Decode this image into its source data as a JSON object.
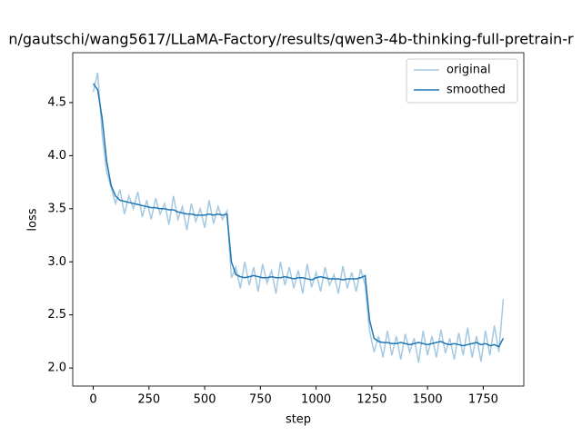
{
  "chart_data": {
    "type": "line",
    "title": "n/gautschi/wang5617/LLaMA-Factory/results/qwen3-4b-thinking-full-pretrain-r",
    "xlabel": "step",
    "ylabel": "loss",
    "x": [
      0,
      20,
      40,
      60,
      80,
      100,
      120,
      140,
      160,
      180,
      200,
      220,
      240,
      260,
      280,
      300,
      320,
      340,
      360,
      380,
      400,
      420,
      440,
      460,
      480,
      500,
      520,
      540,
      560,
      580,
      600,
      620,
      640,
      660,
      680,
      700,
      720,
      740,
      760,
      780,
      800,
      820,
      840,
      860,
      880,
      900,
      920,
      940,
      960,
      980,
      1000,
      1020,
      1040,
      1060,
      1080,
      1100,
      1120,
      1140,
      1160,
      1180,
      1200,
      1220,
      1240,
      1260,
      1280,
      1300,
      1320,
      1340,
      1360,
      1380,
      1400,
      1420,
      1440,
      1460,
      1480,
      1500,
      1520,
      1540,
      1560,
      1580,
      1600,
      1620,
      1640,
      1660,
      1680,
      1700,
      1720,
      1740,
      1760,
      1780,
      1800,
      1820,
      1840
    ],
    "series": [
      {
        "name": "original",
        "color": "#1f77b4",
        "opacity": 0.4,
        "values": [
          4.6,
          4.78,
          4.2,
          3.85,
          3.7,
          3.55,
          3.68,
          3.45,
          3.62,
          3.5,
          3.66,
          3.42,
          3.58,
          3.4,
          3.6,
          3.45,
          3.55,
          3.35,
          3.62,
          3.4,
          3.52,
          3.3,
          3.55,
          3.38,
          3.5,
          3.32,
          3.58,
          3.36,
          3.52,
          3.4,
          3.48,
          2.85,
          2.95,
          2.75,
          3.0,
          2.78,
          2.95,
          2.72,
          2.98,
          2.8,
          2.92,
          2.7,
          3.0,
          2.78,
          2.95,
          2.75,
          2.92,
          2.7,
          2.98,
          2.76,
          2.9,
          2.72,
          2.95,
          2.78,
          2.88,
          2.7,
          2.96,
          2.75,
          2.9,
          2.72,
          2.93,
          2.78,
          2.35,
          2.15,
          2.3,
          2.1,
          2.35,
          2.12,
          2.3,
          2.08,
          2.32,
          2.15,
          2.28,
          2.05,
          2.35,
          2.12,
          2.3,
          2.1,
          2.36,
          2.14,
          2.28,
          2.08,
          2.33,
          2.12,
          2.38,
          2.1,
          2.3,
          2.06,
          2.35,
          2.12,
          2.4,
          2.15,
          2.65
        ]
      },
      {
        "name": "smoothed",
        "color": "#1f77b4",
        "opacity": 1,
        "values": [
          4.68,
          4.62,
          4.35,
          3.95,
          3.72,
          3.62,
          3.58,
          3.57,
          3.56,
          3.55,
          3.54,
          3.53,
          3.52,
          3.51,
          3.51,
          3.5,
          3.5,
          3.49,
          3.49,
          3.47,
          3.46,
          3.45,
          3.45,
          3.44,
          3.44,
          3.44,
          3.45,
          3.44,
          3.45,
          3.44,
          3.45,
          3.0,
          2.88,
          2.86,
          2.85,
          2.86,
          2.87,
          2.86,
          2.85,
          2.85,
          2.86,
          2.85,
          2.85,
          2.86,
          2.85,
          2.84,
          2.85,
          2.85,
          2.84,
          2.83,
          2.85,
          2.86,
          2.85,
          2.84,
          2.84,
          2.84,
          2.83,
          2.84,
          2.84,
          2.84,
          2.85,
          2.87,
          2.45,
          2.28,
          2.25,
          2.24,
          2.24,
          2.23,
          2.23,
          2.24,
          2.23,
          2.22,
          2.23,
          2.24,
          2.23,
          2.22,
          2.23,
          2.24,
          2.25,
          2.23,
          2.22,
          2.23,
          2.22,
          2.21,
          2.22,
          2.23,
          2.24,
          2.22,
          2.23,
          2.21,
          2.22,
          2.2,
          2.28
        ]
      }
    ],
    "xlim": [
      -92,
      1932
    ],
    "ylim": [
      1.83,
      4.97
    ],
    "xticks": [
      0,
      250,
      500,
      750,
      1000,
      1250,
      1500,
      1750
    ],
    "yticks": [
      {
        "value": 2.0,
        "label": "2.0"
      },
      {
        "value": 2.5,
        "label": "2.5"
      },
      {
        "value": 3.0,
        "label": "3.0"
      },
      {
        "value": 3.5,
        "label": "3.5"
      },
      {
        "value": 4.0,
        "label": "4.0"
      },
      {
        "value": 4.5,
        "label": "4.5"
      }
    ],
    "legend": "upper right"
  }
}
